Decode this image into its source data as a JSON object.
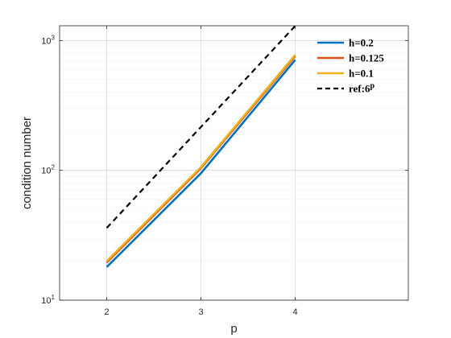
{
  "chart_data": {
    "type": "line",
    "xlabel": "p",
    "ylabel": "condition number",
    "xlim": [
      1.5,
      5.2
    ],
    "ylim": [
      10,
      1300
    ],
    "yscale": "log",
    "grid": true,
    "minor_grid": true,
    "legend_position": "top-right",
    "x_ticks": [
      2,
      3,
      4
    ],
    "y_ticks": [
      10,
      100,
      1000
    ],
    "y_tick_labels": [
      {
        "base": "10",
        "exp": "1"
      },
      {
        "base": "10",
        "exp": "2"
      },
      {
        "base": "10",
        "exp": "3"
      }
    ],
    "x": [
      2,
      3,
      4
    ],
    "series": [
      {
        "name": "h=0.2",
        "values": [
          18,
          95,
          710
        ],
        "color": "#0072BD",
        "style": "solid"
      },
      {
        "name": "h=0.125",
        "values": [
          19.5,
          104,
          760
        ],
        "color": "#D95319",
        "style": "solid"
      },
      {
        "name": "h=0.1",
        "values": [
          20,
          106,
          775
        ],
        "color": "#EDB120",
        "style": "solid"
      },
      {
        "name": "ref:6",
        "name_sup": "p",
        "values": [
          36,
          216,
          1296
        ],
        "color": "#000000",
        "style": "dashed"
      }
    ]
  }
}
